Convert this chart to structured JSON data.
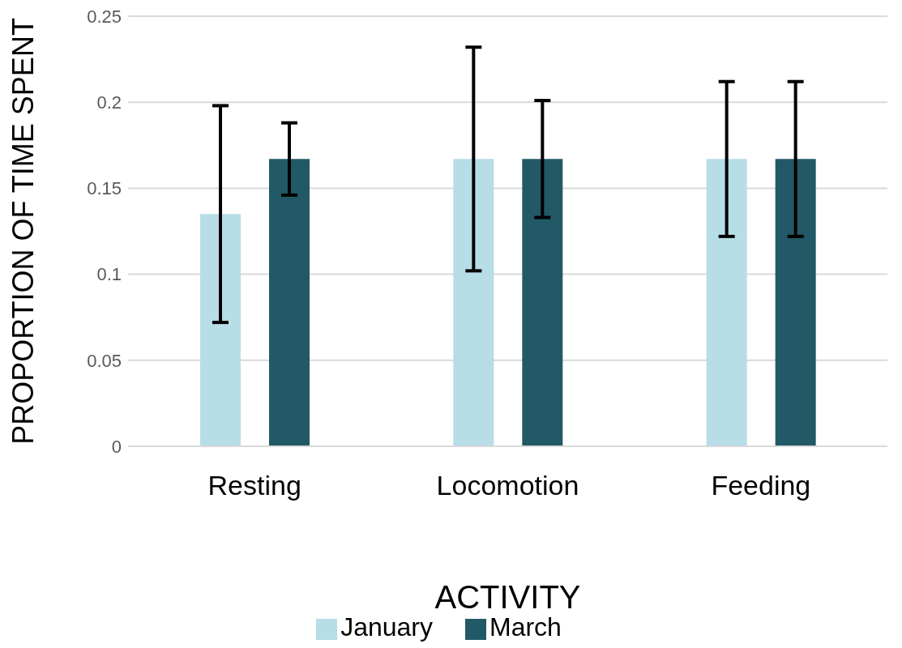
{
  "chart_data": {
    "type": "bar",
    "xlabel": "ACTIVITY",
    "ylabel": "PROPORTION OF TIME SPENT",
    "categories": [
      "Resting",
      "Locomotion",
      "Feeding"
    ],
    "series": [
      {
        "name": "January",
        "color": "#b7dde6",
        "values": [
          0.135,
          0.167,
          0.167
        ],
        "errors": [
          0.063,
          0.065,
          0.045
        ]
      },
      {
        "name": "March",
        "color": "#225966",
        "values": [
          0.167,
          0.167,
          0.167
        ],
        "errors": [
          0.021,
          0.034,
          0.045
        ]
      }
    ],
    "ylim": [
      0,
      0.25
    ],
    "yticks": [
      0,
      0.05,
      0.1,
      0.15,
      0.2,
      0.25
    ],
    "grid": "y",
    "legend": "bottom"
  }
}
